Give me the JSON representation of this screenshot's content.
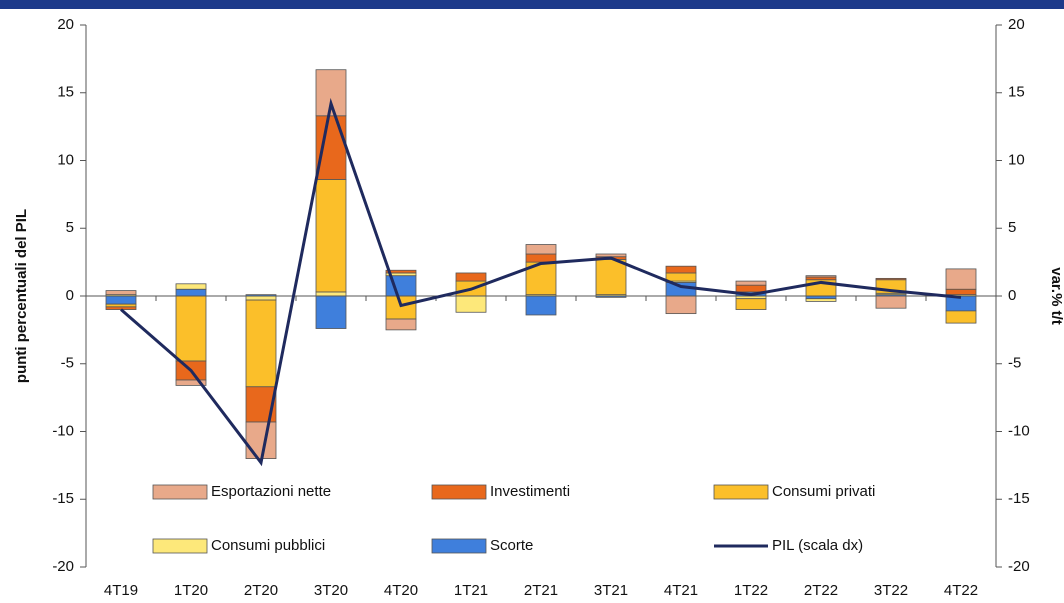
{
  "chart_data": {
    "type": "bar",
    "stacked": true,
    "y_label": "punti percentuali del PIL",
    "y2_label": "var.% t/t",
    "categories": [
      "4T19",
      "1T20",
      "2T20",
      "3T20",
      "4T20",
      "1T21",
      "2T21",
      "3T21",
      "4T21",
      "1T22",
      "2T22",
      "3T22",
      "4T22"
    ],
    "series": [
      {
        "name": "Esportazioni nette",
        "color": "#e8a98a",
        "values": [
          0.3,
          -0.4,
          -2.7,
          3.4,
          -0.8,
          0.0,
          0.7,
          0.2,
          -1.3,
          0.3,
          0.1,
          -0.9,
          1.5
        ]
      },
      {
        "name": "Investimenti",
        "color": "#e8681c",
        "values": [
          -0.2,
          -1.4,
          -2.6,
          4.7,
          0.2,
          0.6,
          0.6,
          0.2,
          0.5,
          0.5,
          0.2,
          0.1,
          0.4
        ]
      },
      {
        "name": "Consumi privati",
        "color": "#fbbf2a",
        "values": [
          -0.2,
          -4.8,
          -6.4,
          8.3,
          -1.7,
          1.1,
          2.4,
          2.6,
          0.6,
          -0.8,
          1.2,
          1.0,
          -0.9
        ]
      },
      {
        "name": "Consumi pubblici",
        "color": "#fde87a",
        "values": [
          0.1,
          0.4,
          -0.3,
          0.3,
          0.2,
          -1.2,
          0.1,
          0.1,
          0.1,
          -0.2,
          -0.2,
          0.1,
          0.1
        ]
      },
      {
        "name": "Scorte",
        "color": "#3f7fdc",
        "values": [
          -0.6,
          0.5,
          0.1,
          -2.4,
          1.5,
          0.0,
          -1.4,
          -0.1,
          1.0,
          0.3,
          -0.2,
          0.1,
          -1.1
        ]
      },
      {
        "name": "PIL (scala dx)",
        "color": "#1f2a5e",
        "type": "line",
        "axis": "y2",
        "values": [
          -1.0,
          -5.5,
          -12.3,
          14.2,
          -0.7,
          0.5,
          2.4,
          2.8,
          0.7,
          0.1,
          1.0,
          0.4,
          -0.1
        ]
      }
    ],
    "ylim": [
      -20,
      20
    ],
    "yticks": [
      -20,
      -15,
      -10,
      -5,
      0,
      5,
      10,
      15,
      20
    ],
    "y2lim": [
      -20,
      20
    ],
    "y2ticks": [
      -20,
      -15,
      -10,
      -5,
      0,
      5,
      10,
      15,
      20
    ]
  }
}
